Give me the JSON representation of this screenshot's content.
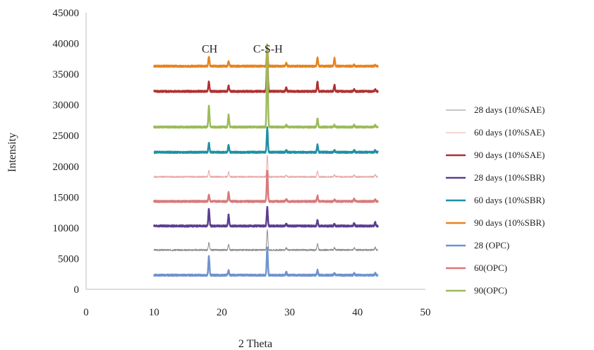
{
  "chart_data": {
    "type": "line",
    "title": "",
    "xlabel": "2 Theta",
    "ylabel": "Intensity",
    "xlim": [
      0,
      50
    ],
    "ylim": [
      0,
      45000
    ],
    "x_ticks": [
      0,
      10,
      20,
      30,
      40,
      50
    ],
    "y_ticks": [
      0,
      5000,
      10000,
      15000,
      20000,
      25000,
      30000,
      35000,
      40000,
      45000
    ],
    "grid": false,
    "legend_position": "right",
    "annotations": [
      {
        "text": "CH",
        "x": 18.2,
        "y": 38500
      },
      {
        "text": "C-S-H",
        "x": 26.8,
        "y": 38500
      }
    ],
    "peak_positions_2theta": [
      18.1,
      21.0,
      26.7,
      29.5,
      34.1,
      36.6,
      39.5,
      42.6
    ],
    "series": [
      {
        "name": "28 days (10%SAE)",
        "color": "#8c8c8c",
        "baseline": 6400,
        "peaks": [
          1200,
          900,
          3300,
          300,
          1000,
          350,
          350,
          400
        ]
      },
      {
        "name": " 60 days (10%SAE)",
        "color": "#e8a8a8",
        "baseline": 18300,
        "peaks": [
          1000,
          800,
          3500,
          250,
          1000,
          300,
          300,
          400
        ]
      },
      {
        "name": "90 days (10%SAE)",
        "color": "#b03030",
        "baseline": 32200,
        "peaks": [
          1600,
          900,
          6500,
          600,
          1500,
          1000,
          300,
          300
        ]
      },
      {
        "name": "28 days (10%SBR)",
        "color": "#5a3f8f",
        "baseline": 10300,
        "peaks": [
          2800,
          1800,
          3000,
          400,
          900,
          300,
          400,
          600
        ]
      },
      {
        "name": "60 days (10%SBR)",
        "color": "#1f90a3",
        "baseline": 22300,
        "peaks": [
          1500,
          1200,
          4000,
          300,
          1200,
          300,
          300,
          300
        ]
      },
      {
        "name": "90 days (10%SBR)",
        "color": "#e8831f",
        "baseline": 36300,
        "peaks": [
          1500,
          800,
          3000,
          500,
          1400,
          1300,
          200,
          200
        ]
      },
      {
        "name": "28 (OPC)",
        "color": "#6f93cf",
        "baseline": 2300,
        "peaks": [
          3000,
          800,
          4500,
          500,
          800,
          300,
          300,
          300
        ]
      },
      {
        "name": "60(OPC)",
        "color": "#d9797a",
        "baseline": 14300,
        "peaks": [
          1000,
          1500,
          5000,
          400,
          900,
          300,
          400,
          300
        ]
      },
      {
        "name": "90(OPC)",
        "color": "#9bbb59",
        "baseline": 26400,
        "peaks": [
          3400,
          2000,
          13500,
          300,
          1400,
          300,
          300,
          300
        ]
      }
    ]
  }
}
